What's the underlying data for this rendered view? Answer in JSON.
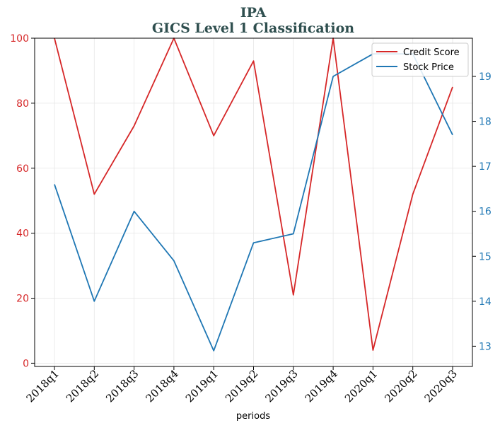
{
  "chart_data": {
    "type": "line",
    "title": "IPA",
    "subtitle": "GICS Level 1 Classification",
    "xlabel": "periods",
    "categories": [
      "2018q1",
      "2018q2",
      "2018q3",
      "2018q4",
      "2019q1",
      "2019q2",
      "2019q3",
      "2019q4",
      "2020q1",
      "2020q2",
      "2020q3"
    ],
    "series": [
      {
        "name": "Credit Score",
        "axis": "left",
        "color": "#d62728",
        "values": [
          100,
          52,
          73,
          100,
          70,
          93,
          21,
          100,
          4,
          52,
          85
        ]
      },
      {
        "name": "Stock Price",
        "axis": "right",
        "color": "#1f77b4",
        "values": [
          16.6,
          14.0,
          16.0,
          14.9,
          12.9,
          15.3,
          15.5,
          19.0,
          19.5,
          19.5,
          17.7
        ]
      }
    ],
    "left_axis": {
      "ylim": [
        -1,
        100
      ],
      "ticks": [
        0,
        20,
        40,
        60,
        80,
        100
      ],
      "color": "#d62728"
    },
    "right_axis": {
      "ylim": [
        12.55,
        19.85
      ],
      "ticks": [
        13,
        14,
        15,
        16,
        17,
        18,
        19
      ],
      "color": "#1f77b4"
    },
    "grid": true,
    "legend": "top-right"
  }
}
